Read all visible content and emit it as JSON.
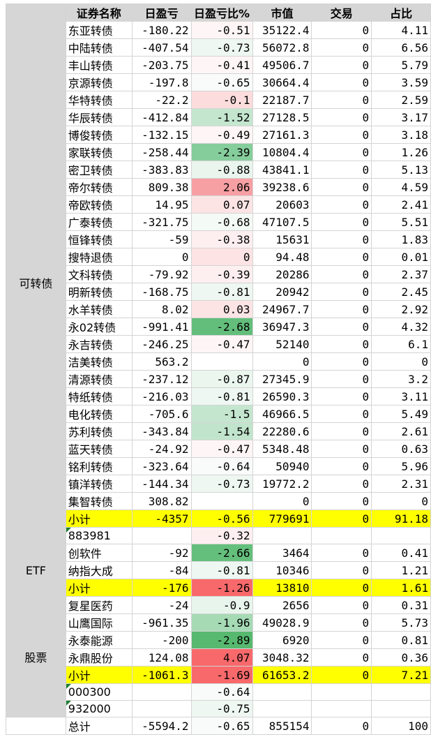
{
  "headers": [
    "证券名称",
    "日盈亏",
    "日盈亏比%",
    "市值",
    "交易",
    "占比"
  ],
  "groups": [
    {
      "label": "可转债",
      "rows": [
        {
          "name": "东亚转债",
          "pnl": "-180.22",
          "pct": "-0.51",
          "mv": "35122.4",
          "trade": "0",
          "share": "4.11",
          "pct_bg": "#fdf5f6"
        },
        {
          "name": "中陆转债",
          "pnl": "-407.54",
          "pct": "-0.73",
          "mv": "56072.8",
          "trade": "0",
          "share": "6.56",
          "pct_bg": "#eef7f2"
        },
        {
          "name": "丰山转债",
          "pnl": "-203.75",
          "pct": "-0.41",
          "mv": "49506.7",
          "trade": "0",
          "share": "5.79",
          "pct_bg": "#fdf5f6"
        },
        {
          "name": "京源转债",
          "pnl": "-197.8",
          "pct": "-0.65",
          "mv": "30664.4",
          "trade": "0",
          "share": "3.59",
          "pct_bg": "#f8fbf9"
        },
        {
          "name": "华特转债",
          "pnl": "-22.2",
          "pct": "-0.1",
          "mv": "22187.7",
          "trade": "0",
          "share": "2.59",
          "pct_bg": "#fcdcdd"
        },
        {
          "name": "华辰转债",
          "pnl": "-412.84",
          "pct": "-1.52",
          "mv": "27128.5",
          "trade": "0",
          "share": "3.17",
          "pct_bg": "#c4e6cf"
        },
        {
          "name": "博俊转债",
          "pnl": "-132.15",
          "pct": "-0.49",
          "mv": "27161.3",
          "trade": "0",
          "share": "3.18",
          "pct_bg": "#fdf5f6"
        },
        {
          "name": "家联转债",
          "pnl": "-258.44",
          "pct": "-2.39",
          "mv": "10804.4",
          "trade": "0",
          "share": "1.26",
          "pct_bg": "#86cd9c"
        },
        {
          "name": "密卫转债",
          "pnl": "-383.83",
          "pct": "-0.88",
          "mv": "43841.1",
          "trade": "0",
          "share": "5.13",
          "pct_bg": "#e9f5ed"
        },
        {
          "name": "帝尔转债",
          "pnl": "809.38",
          "pct": "2.06",
          "mv": "39238.6",
          "trade": "0",
          "share": "4.59",
          "pct_bg": "#f7a0a4"
        },
        {
          "name": "帝欧转债",
          "pnl": "14.95",
          "pct": "0.07",
          "mv": "20603",
          "trade": "0",
          "share": "2.41",
          "pct_bg": "#fce4e5"
        },
        {
          "name": "广泰转债",
          "pnl": "-321.75",
          "pct": "-0.68",
          "mv": "47107.5",
          "trade": "0",
          "share": "5.51",
          "pct_bg": "#f4faf6"
        },
        {
          "name": "恒锋转债",
          "pnl": "-59",
          "pct": "-0.38",
          "mv": "15631",
          "trade": "0",
          "share": "1.83",
          "pct_bg": "#fdeff0"
        },
        {
          "name": "搜特退债",
          "pnl": "0",
          "pct": "0",
          "mv": "94.48",
          "trade": "0",
          "share": "0.01",
          "pct_bg": "#fde3e4"
        },
        {
          "name": "文科转债",
          "pnl": "-79.92",
          "pct": "-0.39",
          "mv": "20286",
          "trade": "0",
          "share": "2.37",
          "pct_bg": "#fdeff0"
        },
        {
          "name": "明新转债",
          "pnl": "-168.75",
          "pct": "-0.81",
          "mv": "20942",
          "trade": "0",
          "share": "2.45",
          "pct_bg": "#eef7f2"
        },
        {
          "name": "水羊转债",
          "pnl": "8.02",
          "pct": "0.03",
          "mv": "24967.7",
          "trade": "0",
          "share": "2.92",
          "pct_bg": "#fce4e5"
        },
        {
          "name": "永02转债",
          "pnl": "-991.41",
          "pct": "-2.68",
          "mv": "36947.3",
          "trade": "0",
          "share": "4.32",
          "pct_bg": "#63be7b"
        },
        {
          "name": "永吉转债",
          "pnl": "-246.25",
          "pct": "-0.47",
          "mv": "52140",
          "trade": "0",
          "share": "6.1",
          "pct_bg": "#fdf5f6"
        },
        {
          "name": "洁美转债",
          "pnl": "563.2",
          "pct": "",
          "mv": "0",
          "trade": "0",
          "share": "0",
          "pct_bg": "#ffffff"
        },
        {
          "name": "清源转债",
          "pnl": "-237.12",
          "pct": "-0.87",
          "mv": "27345.9",
          "trade": "0",
          "share": "3.2",
          "pct_bg": "#eaf6ee"
        },
        {
          "name": "特纸转债",
          "pnl": "-216.03",
          "pct": "-0.81",
          "mv": "26590.3",
          "trade": "0",
          "share": "3.11",
          "pct_bg": "#eef7f2"
        },
        {
          "name": "电化转债",
          "pnl": "-705.6",
          "pct": "-1.5",
          "mv": "46966.5",
          "trade": "0",
          "share": "5.49",
          "pct_bg": "#c4e6cf"
        },
        {
          "name": "苏利转债",
          "pnl": "-343.84",
          "pct": "-1.54",
          "mv": "22280.6",
          "trade": "0",
          "share": "2.61",
          "pct_bg": "#c1e5cc"
        },
        {
          "name": "蓝天转债",
          "pnl": "-24.92",
          "pct": "-0.47",
          "mv": "5348.48",
          "trade": "0",
          "share": "0.63",
          "pct_bg": "#fdf5f6"
        },
        {
          "name": "铭利转债",
          "pnl": "-323.64",
          "pct": "-0.64",
          "mv": "50940",
          "trade": "0",
          "share": "5.96",
          "pct_bg": "#f8fbf9"
        },
        {
          "name": "镇洋转债",
          "pnl": "-144.34",
          "pct": "-0.73",
          "mv": "19772.2",
          "trade": "0",
          "share": "2.31",
          "pct_bg": "#eef7f2"
        },
        {
          "name": "集智转债",
          "pnl": "308.82",
          "pct": "",
          "mv": "0",
          "trade": "0",
          "share": "0",
          "pct_bg": "#ffffff"
        }
      ],
      "subtotal": {
        "name": "小计",
        "pnl": "-4357",
        "pct": "-0.56",
        "mv": "779691",
        "trade": "0",
        "share": "91.18"
      },
      "extra": [
        {
          "name": "883981",
          "pct": "-0.32",
          "pct_bg": "#fdeff0"
        }
      ]
    },
    {
      "label": "ETF",
      "rows": [
        {
          "name": "创软件",
          "pnl": "-92",
          "pct": "-2.66",
          "mv": "3464",
          "trade": "0",
          "share": "0.41",
          "pct_bg": "#65bf7c"
        },
        {
          "name": "纳指大成",
          "pnl": "-84",
          "pct": "-0.81",
          "mv": "10346",
          "trade": "0",
          "share": "1.21",
          "pct_bg": "#eef7f2"
        }
      ],
      "subtotal": {
        "name": "小计",
        "pnl": "-176",
        "pct": "-1.26",
        "mv": "13810",
        "trade": "0",
        "share": "1.61",
        "pct_bg": "#f8696b"
      },
      "extra": []
    },
    {
      "label": "股票",
      "rows": [
        {
          "name": "复星医药",
          "pnl": "-24",
          "pct": "-0.9",
          "mv": "2656",
          "trade": "0",
          "share": "0.31",
          "pct_bg": "#e8f5ec"
        },
        {
          "name": "山鹰国际",
          "pnl": "-961.35",
          "pct": "-1.96",
          "mv": "49028.9",
          "trade": "0",
          "share": "5.73",
          "pct_bg": "#a5dab5"
        },
        {
          "name": "永泰能源",
          "pnl": "-200",
          "pct": "-2.89",
          "mv": "6920",
          "trade": "0",
          "share": "0.81",
          "pct_bg": "#57b96f"
        },
        {
          "name": "永鼎股份",
          "pnl": "124.08",
          "pct": "4.07",
          "mv": "3048.32",
          "trade": "0",
          "share": "0.36",
          "pct_bg": "#f8696b"
        }
      ],
      "subtotal": {
        "name": "小计",
        "pnl": "-1061.3",
        "pct": "-1.69",
        "mv": "61653.2",
        "trade": "0",
        "share": "7.21",
        "pct_bg": "#f8696b"
      },
      "extra": [
        {
          "name": "000300",
          "pct": "-0.64",
          "pct_bg": "#f8fbf9"
        },
        {
          "name": "932000",
          "pct": "-0.75",
          "pct_bg": "#eef7f2"
        }
      ]
    }
  ],
  "total": {
    "name": "总计",
    "pnl": "-5594.2",
    "pct": "-0.65",
    "mv": "855154",
    "trade": "0",
    "share": "100",
    "pct_bg": "#f8fbf9"
  }
}
